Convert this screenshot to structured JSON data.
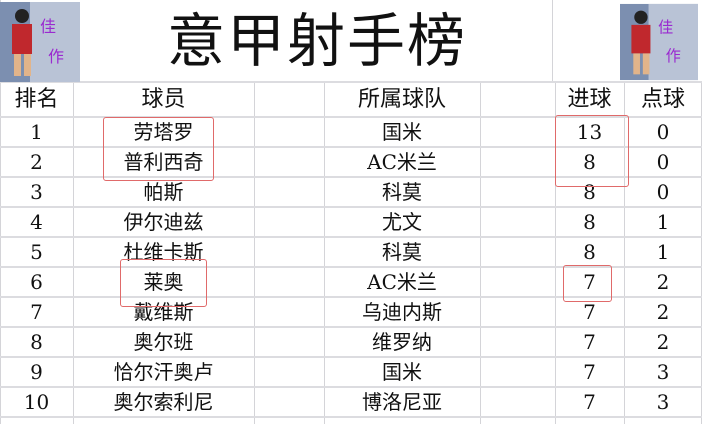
{
  "title": "意甲射手榜",
  "headers": {
    "rank": "排名",
    "player": "球员",
    "team": "所属球队",
    "goals": "进球",
    "penalties": "点球"
  },
  "rows": [
    {
      "rank": "1",
      "player": "劳塔罗",
      "team": "国米",
      "goals": "13",
      "penalties": "0"
    },
    {
      "rank": "2",
      "player": "普利西奇",
      "team": "AC米兰",
      "goals": "8",
      "penalties": "0"
    },
    {
      "rank": "3",
      "player": "帕斯",
      "team": "科莫",
      "goals": "8",
      "penalties": "0"
    },
    {
      "rank": "4",
      "player": "伊尔迪兹",
      "team": "尤文",
      "goals": "8",
      "penalties": "1"
    },
    {
      "rank": "5",
      "player": "杜维卡斯",
      "team": "科莫",
      "goals": "8",
      "penalties": "1"
    },
    {
      "rank": "6",
      "player": "莱奥",
      "team": "AC米兰",
      "goals": "7",
      "penalties": "2"
    },
    {
      "rank": "7",
      "player": "戴维斯",
      "team": "乌迪内斯",
      "goals": "7",
      "penalties": "2"
    },
    {
      "rank": "8",
      "player": "奥尔班",
      "team": "维罗纳",
      "goals": "7",
      "penalties": "2"
    },
    {
      "rank": "9",
      "player": "恰尔汗奥卢",
      "team": "国米",
      "goals": "7",
      "penalties": "3"
    },
    {
      "rank": "10",
      "player": "奥尔索利尼",
      "team": "博洛尼亚",
      "goals": "7",
      "penalties": "3"
    }
  ],
  "colors": {
    "highlight": "#e06a6a",
    "grid": "#d4d4d8"
  }
}
